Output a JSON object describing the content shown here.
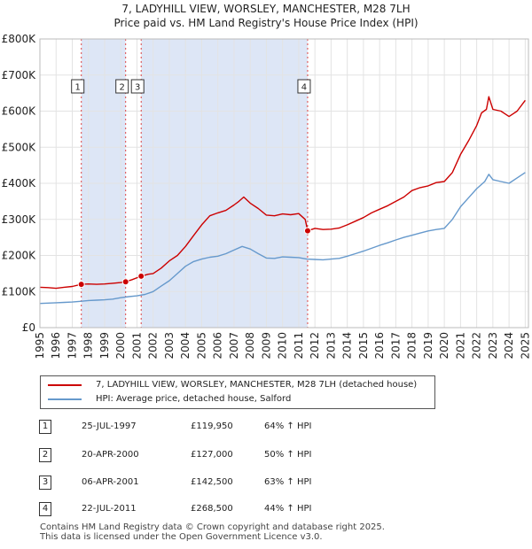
{
  "header": {
    "title": "7, LADYHILL VIEW, WORSLEY, MANCHESTER, M28 7LH",
    "subtitle": "Price paid vs. HM Land Registry's House Price Index (HPI)"
  },
  "chart_data": {
    "type": "line",
    "title": "7, LADYHILL VIEW, WORSLEY, MANCHESTER, M28 7LH",
    "subtitle": "Price paid vs. HM Land Registry's House Price Index (HPI)",
    "xlim": [
      1995,
      2025.2
    ],
    "ylim": [
      0,
      800000
    ],
    "x_ticks": [
      "1995",
      "1996",
      "1997",
      "1998",
      "1999",
      "2000",
      "2001",
      "2002",
      "2003",
      "2004",
      "2005",
      "2006",
      "2007",
      "2008",
      "2009",
      "2010",
      "2011",
      "2012",
      "2013",
      "2014",
      "2015",
      "2016",
      "2017",
      "2018",
      "2019",
      "2020",
      "2021",
      "2022",
      "2023",
      "2024",
      "2025"
    ],
    "y_ticks": [
      {
        "value": 0,
        "label": "£0"
      },
      {
        "value": 100000,
        "label": "£100K"
      },
      {
        "value": 200000,
        "label": "£200K"
      },
      {
        "value": 300000,
        "label": "£300K"
      },
      {
        "value": 400000,
        "label": "£400K"
      },
      {
        "value": 500000,
        "label": "£500K"
      },
      {
        "value": 600000,
        "label": "£600K"
      },
      {
        "value": 700000,
        "label": "£700K"
      },
      {
        "value": 800000,
        "label": "£800K"
      }
    ],
    "shaded_spans": [
      [
        1997.56,
        2000.3
      ],
      [
        2001.26,
        2011.55
      ]
    ],
    "series": [
      {
        "name": "7, LADYHILL VIEW, WORSLEY, MANCHESTER, M28 7LH (detached house)",
        "color": "#cc0000",
        "points": [
          [
            1995,
            112000
          ],
          [
            1995.5,
            111000
          ],
          [
            1996,
            109000
          ],
          [
            1996.5,
            112000
          ],
          [
            1997,
            114000
          ],
          [
            1997.56,
            119950
          ],
          [
            1998,
            121000
          ],
          [
            1998.5,
            120000
          ],
          [
            1999,
            121000
          ],
          [
            1999.5,
            123000
          ],
          [
            2000,
            125000
          ],
          [
            2000.3,
            127000
          ],
          [
            2000.7,
            133000
          ],
          [
            2001.26,
            142500
          ],
          [
            2001.7,
            148000
          ],
          [
            2002,
            150000
          ],
          [
            2002.5,
            165000
          ],
          [
            2003,
            185000
          ],
          [
            2003.5,
            200000
          ],
          [
            2004,
            225000
          ],
          [
            2004.5,
            255000
          ],
          [
            2005,
            285000
          ],
          [
            2005.5,
            310000
          ],
          [
            2006,
            318000
          ],
          [
            2006.5,
            325000
          ],
          [
            2007,
            340000
          ],
          [
            2007.3,
            350000
          ],
          [
            2007.6,
            362000
          ],
          [
            2008,
            345000
          ],
          [
            2008.5,
            330000
          ],
          [
            2009,
            312000
          ],
          [
            2009.5,
            310000
          ],
          [
            2010,
            315000
          ],
          [
            2010.5,
            313000
          ],
          [
            2011,
            316000
          ],
          [
            2011.4,
            300000
          ],
          [
            2011.55,
            268500
          ],
          [
            2012,
            275000
          ],
          [
            2012.5,
            272000
          ],
          [
            2013,
            273000
          ],
          [
            2013.5,
            276000
          ],
          [
            2014,
            285000
          ],
          [
            2014.5,
            295000
          ],
          [
            2015,
            305000
          ],
          [
            2015.5,
            318000
          ],
          [
            2016,
            328000
          ],
          [
            2016.5,
            338000
          ],
          [
            2017,
            350000
          ],
          [
            2017.5,
            362000
          ],
          [
            2018,
            380000
          ],
          [
            2018.5,
            388000
          ],
          [
            2019,
            393000
          ],
          [
            2019.5,
            402000
          ],
          [
            2020,
            405000
          ],
          [
            2020.5,
            430000
          ],
          [
            2021,
            480000
          ],
          [
            2021.5,
            518000
          ],
          [
            2022,
            560000
          ],
          [
            2022.3,
            595000
          ],
          [
            2022.6,
            605000
          ],
          [
            2022.75,
            640000
          ],
          [
            2023,
            605000
          ],
          [
            2023.5,
            600000
          ],
          [
            2024,
            585000
          ],
          [
            2024.5,
            600000
          ],
          [
            2025,
            630000
          ]
        ]
      },
      {
        "name": "HPI: Average price, detached house, Salford",
        "color": "#6699cc",
        "points": [
          [
            1995,
            67000
          ],
          [
            1995.5,
            68000
          ],
          [
            1996,
            69000
          ],
          [
            1996.5,
            70000
          ],
          [
            1997,
            71000
          ],
          [
            1997.5,
            73000
          ],
          [
            1998,
            75000
          ],
          [
            1998.5,
            76000
          ],
          [
            1999,
            77000
          ],
          [
            1999.5,
            79000
          ],
          [
            2000,
            83000
          ],
          [
            2000.5,
            86000
          ],
          [
            2001,
            88000
          ],
          [
            2001.5,
            92000
          ],
          [
            2002,
            100000
          ],
          [
            2002.5,
            115000
          ],
          [
            2003,
            130000
          ],
          [
            2003.5,
            150000
          ],
          [
            2004,
            170000
          ],
          [
            2004.5,
            183000
          ],
          [
            2005,
            190000
          ],
          [
            2005.5,
            195000
          ],
          [
            2006,
            198000
          ],
          [
            2006.5,
            205000
          ],
          [
            2007,
            215000
          ],
          [
            2007.5,
            225000
          ],
          [
            2008,
            218000
          ],
          [
            2008.5,
            205000
          ],
          [
            2009,
            193000
          ],
          [
            2009.5,
            192000
          ],
          [
            2010,
            196000
          ],
          [
            2010.5,
            195000
          ],
          [
            2011,
            194000
          ],
          [
            2011.5,
            190000
          ],
          [
            2012,
            189000
          ],
          [
            2012.5,
            188000
          ],
          [
            2013,
            190000
          ],
          [
            2013.5,
            192000
          ],
          [
            2014,
            198000
          ],
          [
            2014.5,
            205000
          ],
          [
            2015,
            212000
          ],
          [
            2015.5,
            220000
          ],
          [
            2016,
            228000
          ],
          [
            2016.5,
            235000
          ],
          [
            2017,
            243000
          ],
          [
            2017.5,
            250000
          ],
          [
            2018,
            256000
          ],
          [
            2018.5,
            262000
          ],
          [
            2019,
            268000
          ],
          [
            2019.5,
            272000
          ],
          [
            2020,
            275000
          ],
          [
            2020.5,
            300000
          ],
          [
            2021,
            335000
          ],
          [
            2021.5,
            360000
          ],
          [
            2022,
            385000
          ],
          [
            2022.5,
            405000
          ],
          [
            2022.75,
            425000
          ],
          [
            2023,
            410000
          ],
          [
            2023.5,
            405000
          ],
          [
            2024,
            400000
          ],
          [
            2024.5,
            415000
          ],
          [
            2025,
            430000
          ]
        ]
      }
    ],
    "markers": [
      {
        "label": "1",
        "x": 1997.56,
        "y": 119950
      },
      {
        "label": "2",
        "x": 2000.3,
        "y": 127000
      },
      {
        "label": "3",
        "x": 2001.26,
        "y": 142500
      },
      {
        "label": "4",
        "x": 2011.55,
        "y": 268500
      }
    ]
  },
  "legend": {
    "items": [
      {
        "label": "7, LADYHILL VIEW, WORSLEY, MANCHESTER, M28 7LH (detached house)",
        "color": "#cc0000"
      },
      {
        "label": "HPI: Average price, detached house, Salford",
        "color": "#6699cc"
      }
    ]
  },
  "sales": [
    {
      "num": "1",
      "date": "25-JUL-1997",
      "price": "£119,950",
      "hpi": "64% ↑ HPI"
    },
    {
      "num": "2",
      "date": "20-APR-2000",
      "price": "£127,000",
      "hpi": "50% ↑ HPI"
    },
    {
      "num": "3",
      "date": "06-APR-2001",
      "price": "£142,500",
      "hpi": "63% ↑ HPI"
    },
    {
      "num": "4",
      "date": "22-JUL-2011",
      "price": "£268,500",
      "hpi": "44% ↑ HPI"
    }
  ],
  "footer": {
    "line1": "Contains HM Land Registry data © Crown copyright and database right 2025.",
    "line2": "This data is licensed under the Open Government Licence v3.0."
  }
}
